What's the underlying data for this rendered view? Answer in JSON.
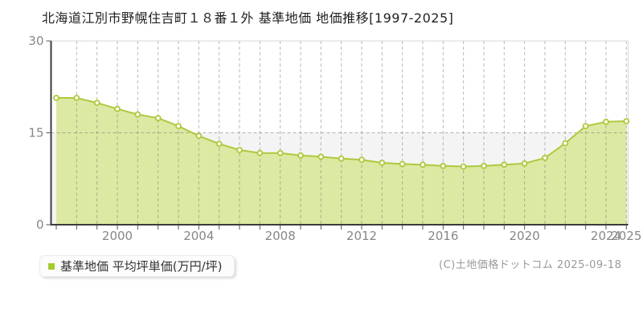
{
  "page": {
    "title": "北海道江別市野幌住吉町１８番１外 基準地価 地価推移[1997-2025]"
  },
  "legend": {
    "label": "基準地価 平均坪単価(万円/坪)"
  },
  "footer": {
    "copyright": "(C)土地価格ドットコム 2025-09-18"
  },
  "chart_data": {
    "type": "area",
    "title": "北海道江別市野幌住吉町１８番１外 基準地価 地価推移[1997-2025]",
    "series_name": "基準地価 平均坪単価(万円/坪)",
    "ylabel_unit": "万円/坪",
    "x": [
      1997,
      1998,
      1999,
      2000,
      2001,
      2002,
      2003,
      2004,
      2005,
      2006,
      2007,
      2008,
      2009,
      2010,
      2011,
      2012,
      2013,
      2014,
      2015,
      2016,
      2017,
      2018,
      2019,
      2020,
      2021,
      2022,
      2023,
      2024,
      2025
    ],
    "values": [
      20.7,
      20.7,
      19.9,
      18.9,
      18.0,
      17.4,
      16.1,
      14.5,
      13.2,
      12.2,
      11.7,
      11.7,
      11.3,
      11.1,
      10.8,
      10.6,
      10.1,
      9.9,
      9.8,
      9.6,
      9.5,
      9.6,
      9.8,
      10.0,
      10.9,
      13.3,
      16.1,
      16.8,
      16.9
    ],
    "ylim": [
      0,
      30
    ],
    "yticks": [
      0,
      15,
      30
    ],
    "xticks": [
      2000,
      2004,
      2008,
      2012,
      2016,
      2020,
      2024,
      2025
    ],
    "grid": {
      "vertical": "dashed per year",
      "horizontal": "dashed at 15",
      "band_below_15": true
    },
    "legend_position": "bottom-left",
    "colors": {
      "line": "#adc93e",
      "area": "#dce9a2",
      "marker_fill": "#fffef6",
      "band_0_15": "#f4f4f4",
      "axis": "#3c3c3c",
      "grid": "#777777",
      "tick": "#555555",
      "tick_label": "#878787",
      "border": "#d9d9d9",
      "legend_swatch": "#a4ca2f"
    }
  }
}
